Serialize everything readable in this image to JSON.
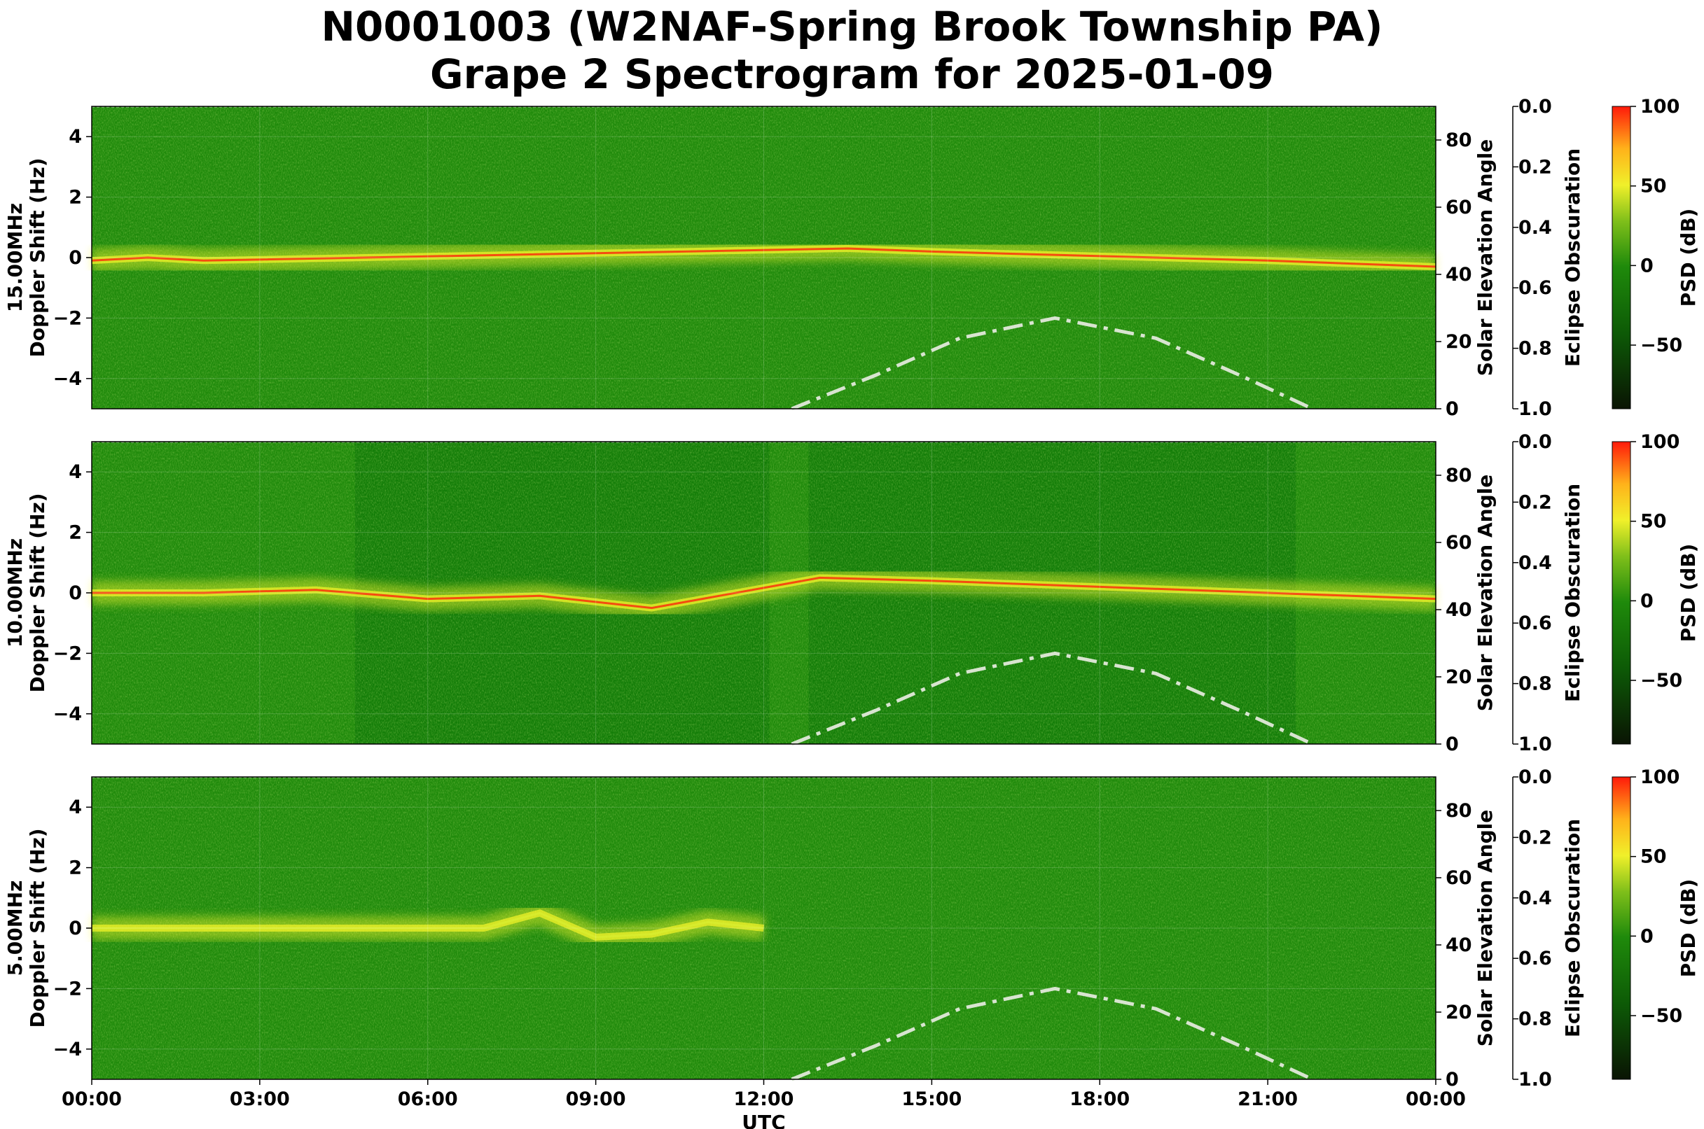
{
  "title_line1": "N0001003 (W2NAF-Spring Brook Township PA)",
  "title_line2": "Grape 2 Spectrogram for 2025-01-09",
  "colors": {
    "psd_low": "#0b1a05",
    "psd_mid": "#1f8a0b",
    "psd_high": "#f5f52a",
    "psd_max": "#ff1a0a",
    "solar_curve": "#d8e4d0"
  },
  "chart_data": [
    {
      "type": "heatmap",
      "band": "15.00MHz",
      "ylabel_line1": "15.00MHz",
      "ylabel_line2": "Doppler Shift (Hz)",
      "xlabel": "",
      "ylim": [
        -5,
        5
      ],
      "yticks": [
        "4",
        "2",
        "0",
        "−2",
        "−4"
      ],
      "ytick_values": [
        4,
        2,
        0,
        -2,
        -4
      ],
      "xlim_hours": [
        0,
        24
      ],
      "xticks": [],
      "right_axis_label": "Solar Elevation Angle",
      "right_axis_ticks": [
        0,
        20,
        40,
        60,
        80
      ],
      "right_axis_range": [
        0,
        90
      ],
      "eclipse_label": "Eclipse Obscuration",
      "eclipse_ticks": [
        "0.0",
        "0.2",
        "0.4",
        "0.6",
        "0.8",
        "1.0"
      ],
      "colorbar_label": "PSD (dB)",
      "colorbar_ticks": [
        "100",
        "50",
        "0",
        "−50"
      ],
      "colorbar_tick_values": [
        100,
        50,
        0,
        -50
      ],
      "colorbar_range": [
        -90,
        100
      ],
      "doppler_trace_hz": [
        [
          0,
          -0.1
        ],
        [
          1,
          0.0
        ],
        [
          2,
          -0.1
        ],
        [
          13.5,
          0.3
        ],
        [
          15,
          0.2
        ],
        [
          17,
          0.1
        ],
        [
          19,
          0.0
        ],
        [
          21,
          -0.1
        ],
        [
          24,
          -0.3
        ]
      ],
      "solar_elevation_deg": [
        [
          12.5,
          0
        ],
        [
          14,
          10
        ],
        [
          15.5,
          21
        ],
        [
          17.2,
          27
        ],
        [
          19,
          21
        ],
        [
          20.5,
          10
        ],
        [
          21.8,
          0
        ]
      ]
    },
    {
      "type": "heatmap",
      "band": "10.00MHz",
      "ylabel_line1": "10.00MHz",
      "ylabel_line2": "Doppler Shift (Hz)",
      "xlabel": "",
      "ylim": [
        -5,
        5
      ],
      "yticks": [
        "4",
        "2",
        "0",
        "−2",
        "−4"
      ],
      "ytick_values": [
        4,
        2,
        0,
        -2,
        -4
      ],
      "xlim_hours": [
        0,
        24
      ],
      "xticks": [],
      "right_axis_label": "Solar Elevation Angle",
      "right_axis_ticks": [
        0,
        20,
        40,
        60,
        80
      ],
      "right_axis_range": [
        0,
        90
      ],
      "eclipse_label": "Eclipse Obscuration",
      "eclipse_ticks": [
        "0.0",
        "0.2",
        "0.4",
        "0.6",
        "0.8",
        "1.0"
      ],
      "colorbar_label": "PSD (dB)",
      "colorbar_ticks": [
        "100",
        "50",
        "0",
        "−50"
      ],
      "colorbar_tick_values": [
        100,
        50,
        0,
        -50
      ],
      "colorbar_range": [
        -90,
        100
      ],
      "doppler_trace_hz": [
        [
          0,
          0.0
        ],
        [
          2,
          0.0
        ],
        [
          4,
          0.1
        ],
        [
          6,
          -0.2
        ],
        [
          8,
          -0.1
        ],
        [
          10,
          -0.5
        ],
        [
          13,
          0.5
        ],
        [
          15,
          0.4
        ],
        [
          18,
          0.2
        ],
        [
          21,
          0.0
        ],
        [
          24,
          -0.2
        ]
      ],
      "solar_elevation_deg": [
        [
          12.5,
          0
        ],
        [
          14,
          10
        ],
        [
          15.5,
          21
        ],
        [
          17.2,
          27
        ],
        [
          19,
          21
        ],
        [
          20.5,
          10
        ],
        [
          21.8,
          0
        ]
      ]
    },
    {
      "type": "heatmap",
      "band": "5.00MHz",
      "ylabel_line1": "5.00MHz",
      "ylabel_line2": "Doppler Shift (Hz)",
      "xlabel": "UTC",
      "ylim": [
        -5,
        5
      ],
      "yticks": [
        "4",
        "2",
        "0",
        "−2",
        "−4"
      ],
      "ytick_values": [
        4,
        2,
        0,
        -2,
        -4
      ],
      "xlim_hours": [
        0,
        24
      ],
      "xticks": [
        "00:00",
        "03:00",
        "06:00",
        "09:00",
        "12:00",
        "15:00",
        "18:00",
        "21:00",
        "00:00"
      ],
      "xtick_hours": [
        0,
        3,
        6,
        9,
        12,
        15,
        18,
        21,
        24
      ],
      "right_axis_label": "Solar Elevation Angle",
      "right_axis_ticks": [
        0,
        20,
        40,
        60,
        80
      ],
      "right_axis_range": [
        0,
        90
      ],
      "eclipse_label": "Eclipse Obscuration",
      "eclipse_ticks": [
        "0.0",
        "0.2",
        "0.4",
        "0.6",
        "0.8",
        "1.0"
      ],
      "colorbar_label": "PSD (dB)",
      "colorbar_ticks": [
        "100",
        "50",
        "0",
        "−50"
      ],
      "colorbar_tick_values": [
        100,
        50,
        0,
        -50
      ],
      "colorbar_range": [
        -90,
        100
      ],
      "doppler_trace_hz": [
        [
          0,
          0.0
        ],
        [
          4,
          0.0
        ],
        [
          7,
          0.0
        ],
        [
          8,
          0.5
        ],
        [
          9,
          -0.3
        ],
        [
          10,
          -0.2
        ],
        [
          11,
          0.2
        ],
        [
          12,
          0.0
        ]
      ],
      "solar_elevation_deg": [
        [
          12.5,
          0
        ],
        [
          14,
          10
        ],
        [
          15.5,
          21
        ],
        [
          17.2,
          27
        ],
        [
          19,
          21
        ],
        [
          20.5,
          10
        ],
        [
          21.8,
          0
        ]
      ]
    }
  ]
}
